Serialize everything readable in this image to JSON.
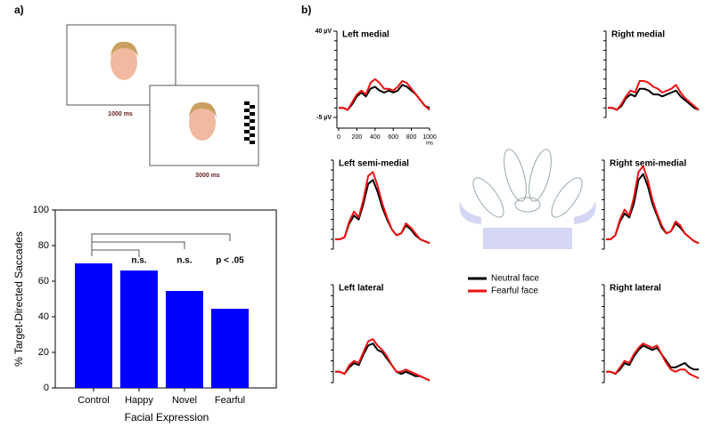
{
  "stimuli": [
    {
      "label": "1000 ms"
    },
    {
      "label": "3000 ms"
    }
  ],
  "chart_data": [
    {
      "type": "bar",
      "panel_label": "a)",
      "categories": [
        "Control",
        "Happy",
        "Novel",
        "Fearful"
      ],
      "values": [
        70,
        66,
        54.5,
        44.5
      ],
      "color": "#0000ff",
      "ylim": [
        0,
        100
      ],
      "yticks": [
        0,
        20,
        40,
        60,
        80,
        100
      ],
      "ylabel": "% Target-Directed Saccades",
      "xlabel": "Facial Expression",
      "annotations": [
        "n.s.",
        "n.s.",
        "p < .05"
      ]
    },
    {
      "type": "line",
      "panel_label": "b)",
      "x": [
        0,
        50,
        100,
        150,
        200,
        250,
        300,
        350,
        400,
        450,
        500,
        550,
        600,
        650,
        700,
        750,
        800,
        850,
        900,
        950,
        1000
      ],
      "xlim": [
        0,
        1000
      ],
      "xticks": [
        0,
        200,
        400,
        600,
        800,
        1000
      ],
      "x_unit": "ms",
      "ylim": [
        -5,
        40
      ],
      "yticks": [
        {
          "value": 40,
          "label": "40 µV"
        },
        {
          "value": -5,
          "label": "-5 µV"
        }
      ],
      "series": [
        {
          "name": "Neutral face",
          "color": "#000000"
        },
        {
          "name": "Fearful face",
          "color": "#ee1111"
        }
      ],
      "panels": [
        {
          "title": "Left medial",
          "values": [
            [
              0,
              0,
              -1,
              2,
              6,
              8,
              6,
              10,
              11,
              9,
              8,
              9,
              8,
              9,
              12,
              11,
              9,
              7,
              4,
              1,
              0
            ],
            [
              0,
              0,
              -1,
              3,
              7,
              9,
              7,
              13,
              15,
              13,
              10,
              10,
              9,
              11,
              14,
              13,
              10,
              7,
              4,
              1,
              -1
            ]
          ]
        },
        {
          "title": "Right medial",
          "values": [
            [
              0,
              0,
              -1,
              1,
              5,
              7,
              6,
              10,
              10,
              9,
              7,
              7,
              6,
              7,
              8,
              9,
              6,
              4,
              2,
              0,
              -1
            ],
            [
              0,
              0,
              -1,
              2,
              6,
              9,
              8,
              14,
              14,
              13,
              11,
              10,
              8,
              9,
              10,
              12,
              8,
              5,
              3,
              1,
              -1
            ]
          ]
        },
        {
          "title": "Left semi-medial",
          "values": [
            [
              0,
              0,
              1,
              8,
              12,
              10,
              18,
              28,
              30,
              24,
              16,
              10,
              5,
              2,
              3,
              7,
              5,
              2,
              0,
              -1,
              -2
            ],
            [
              0,
              0,
              1,
              9,
              14,
              11,
              20,
              32,
              34,
              27,
              18,
              11,
              5,
              2,
              3,
              8,
              6,
              3,
              0,
              -1,
              -2
            ]
          ]
        },
        {
          "title": "Right semi-medial",
          "values": [
            [
              0,
              0,
              2,
              9,
              13,
              11,
              18,
              30,
              33,
              27,
              18,
              12,
              6,
              3,
              4,
              8,
              6,
              3,
              1,
              -1,
              -2
            ],
            [
              0,
              0,
              2,
              10,
              15,
              12,
              21,
              34,
              37,
              30,
              20,
              13,
              7,
              3,
              4,
              9,
              7,
              3,
              1,
              -1,
              -2
            ]
          ]
        },
        {
          "title": "Left lateral",
          "values": [
            [
              0,
              0,
              -1,
              2,
              4,
              3,
              8,
              12,
              13,
              10,
              9,
              6,
              3,
              0,
              -1,
              0,
              -1,
              -2,
              -2,
              -3,
              -4
            ],
            [
              0,
              0,
              -1,
              3,
              5,
              4,
              9,
              14,
              15,
              12,
              10,
              7,
              3,
              0,
              0,
              1,
              0,
              -1,
              -2,
              -3,
              -4
            ]
          ]
        },
        {
          "title": "Right lateral",
          "values": [
            [
              0,
              0,
              -1,
              1,
              4,
              3,
              7,
              10,
              12,
              11,
              10,
              11,
              8,
              5,
              2,
              2,
              3,
              4,
              2,
              1,
              1
            ],
            [
              0,
              0,
              -1,
              2,
              5,
              4,
              8,
              11,
              13,
              12,
              11,
              12,
              8,
              4,
              1,
              0,
              1,
              1,
              -1,
              -2,
              -3
            ]
          ]
        }
      ]
    }
  ]
}
